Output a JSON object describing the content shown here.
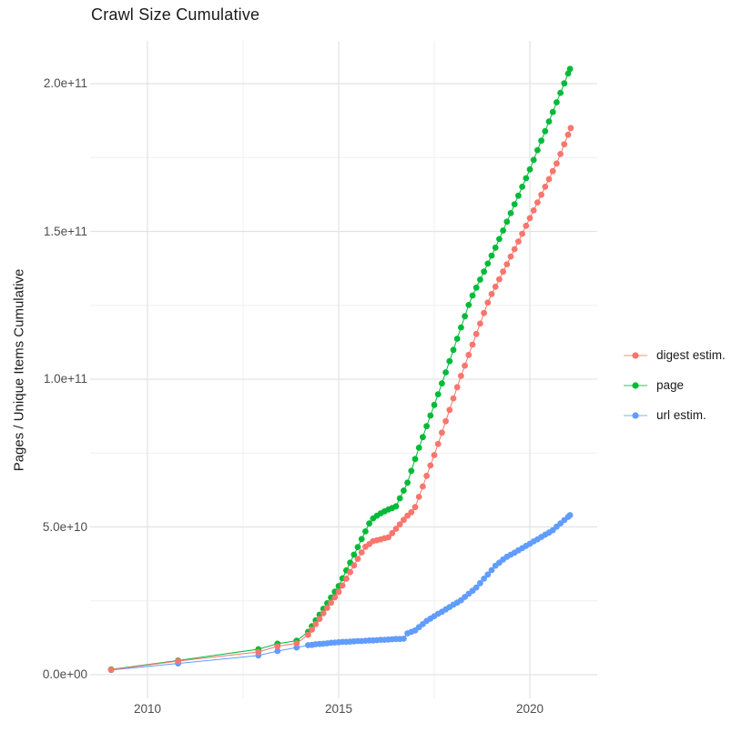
{
  "title": "Crawl Size Cumulative",
  "axes": {
    "y_title": "Pages / Unique Items Cumulative",
    "x_tick_labels": [
      "2010",
      "2015",
      "2020"
    ],
    "y_tick_labels": [
      "0.0e+00",
      "5.0e+10",
      "1.0e+11",
      "1.5e+11",
      "2.0e+11"
    ]
  },
  "legend": {
    "items": [
      {
        "label": "digest estim.",
        "color": "#F8766D"
      },
      {
        "label": "page",
        "color": "#00BA38"
      },
      {
        "label": "url estim.",
        "color": "#619CFF"
      }
    ]
  },
  "style": {
    "background": "#FFFFFF",
    "grid_major_color": "#E3E3E3",
    "grid_minor_color": "#F0F0F0",
    "tick_text_color": "#4D4D4D",
    "title_text_color": "#1A1A1A"
  },
  "chart_data": {
    "type": "line",
    "title": "Crawl Size Cumulative",
    "xlabel": "",
    "ylabel": "Pages / Unique Items Cumulative",
    "value_unit": "items, stored as billions (1 = 1e9); y axis labelled in scientific notation",
    "x_range": [
      2008.5,
      2021.7
    ],
    "y_range_e9": [
      0,
      215
    ],
    "x_major_ticks": [
      2010,
      2015,
      2020
    ],
    "x_minor_ticks": [
      2012.5,
      2017.5
    ],
    "y_major_ticks_e9": [
      0,
      50,
      100,
      150,
      200
    ],
    "y_minor_ticks_e9": [
      25,
      75,
      125,
      175
    ],
    "grid": "major+minor",
    "legend_position": "right",
    "marker": "point",
    "line": true,
    "series": [
      {
        "name": "digest estim.",
        "color": "#F8766D",
        "points": [
          [
            2009.05,
            1.7
          ],
          [
            2010.8,
            4.6
          ],
          [
            2012.9,
            7.7
          ],
          [
            2013.4,
            9.6
          ],
          [
            2013.9,
            10.6
          ],
          [
            2014.2,
            13.5
          ],
          [
            2014.3,
            15.3
          ],
          [
            2014.4,
            17.1
          ],
          [
            2014.5,
            18.9
          ],
          [
            2014.6,
            20.8
          ],
          [
            2014.7,
            22.6
          ],
          [
            2014.8,
            24.4
          ],
          [
            2014.9,
            26.2
          ],
          [
            2015.0,
            28.0
          ],
          [
            2015.1,
            30.2
          ],
          [
            2015.2,
            32.5
          ],
          [
            2015.3,
            34.7
          ],
          [
            2015.4,
            37.0
          ],
          [
            2015.5,
            39.2
          ],
          [
            2015.6,
            41.4
          ],
          [
            2015.7,
            43.3
          ],
          [
            2015.8,
            44.2
          ],
          [
            2015.9,
            45.2
          ],
          [
            2016.0,
            45.5
          ],
          [
            2016.1,
            45.8
          ],
          [
            2016.2,
            46.2
          ],
          [
            2016.3,
            46.5
          ],
          [
            2016.4,
            47.9
          ],
          [
            2016.5,
            49.4
          ],
          [
            2016.6,
            50.9
          ],
          [
            2016.7,
            52.4
          ],
          [
            2016.8,
            53.8
          ],
          [
            2016.9,
            55.0
          ],
          [
            2017.0,
            56.7
          ],
          [
            2017.1,
            60.2
          ],
          [
            2017.2,
            63.7
          ],
          [
            2017.3,
            67.3
          ],
          [
            2017.4,
            70.8
          ],
          [
            2017.5,
            74.3
          ],
          [
            2017.6,
            78.1
          ],
          [
            2017.7,
            81.9
          ],
          [
            2017.8,
            85.8
          ],
          [
            2017.9,
            89.6
          ],
          [
            2018.0,
            93.5
          ],
          [
            2018.1,
            97.3
          ],
          [
            2018.2,
            101.1
          ],
          [
            2018.3,
            104.6
          ],
          [
            2018.4,
            108.2
          ],
          [
            2018.5,
            111.7
          ],
          [
            2018.6,
            115.3
          ],
          [
            2018.7,
            118.8
          ],
          [
            2018.8,
            122.4
          ],
          [
            2018.9,
            125.9
          ],
          [
            2019.0,
            128.8
          ],
          [
            2019.1,
            131.3
          ],
          [
            2019.2,
            133.8
          ],
          [
            2019.3,
            136.4
          ],
          [
            2019.4,
            138.9
          ],
          [
            2019.5,
            141.5
          ],
          [
            2019.6,
            144.0
          ],
          [
            2019.7,
            146.6
          ],
          [
            2019.8,
            149.2
          ],
          [
            2019.9,
            151.9
          ],
          [
            2020.0,
            154.5
          ],
          [
            2020.1,
            157.1
          ],
          [
            2020.2,
            159.8
          ],
          [
            2020.3,
            162.4
          ],
          [
            2020.4,
            165.1
          ],
          [
            2020.5,
            167.7
          ],
          [
            2020.6,
            170.4
          ],
          [
            2020.7,
            173.0
          ],
          [
            2020.8,
            176.2
          ],
          [
            2020.9,
            179.5
          ],
          [
            2021.0,
            182.7
          ],
          [
            2021.07,
            185.0
          ]
        ]
      },
      {
        "name": "page",
        "color": "#00BA38",
        "points": [
          [
            2009.05,
            1.8
          ],
          [
            2010.8,
            4.8
          ],
          [
            2012.9,
            8.6
          ],
          [
            2013.4,
            10.5
          ],
          [
            2013.9,
            11.5
          ],
          [
            2014.2,
            14.5
          ],
          [
            2014.3,
            16.4
          ],
          [
            2014.4,
            18.4
          ],
          [
            2014.5,
            20.3
          ],
          [
            2014.6,
            22.3
          ],
          [
            2014.7,
            24.2
          ],
          [
            2014.8,
            26.1
          ],
          [
            2014.9,
            28.1
          ],
          [
            2015.0,
            30.0
          ],
          [
            2015.1,
            32.6
          ],
          [
            2015.2,
            35.3
          ],
          [
            2015.3,
            37.9
          ],
          [
            2015.4,
            40.6
          ],
          [
            2015.5,
            43.2
          ],
          [
            2015.6,
            45.9
          ],
          [
            2015.7,
            48.5
          ],
          [
            2015.8,
            51.2
          ],
          [
            2015.9,
            52.9
          ],
          [
            2016.0,
            53.8
          ],
          [
            2016.1,
            54.6
          ],
          [
            2016.2,
            55.3
          ],
          [
            2016.3,
            55.9
          ],
          [
            2016.4,
            56.4
          ],
          [
            2016.5,
            57.0
          ],
          [
            2016.6,
            59.7
          ],
          [
            2016.7,
            62.3
          ],
          [
            2016.8,
            65.0
          ],
          [
            2016.9,
            69.0
          ],
          [
            2017.0,
            73.0
          ],
          [
            2017.1,
            76.8
          ],
          [
            2017.2,
            80.4
          ],
          [
            2017.3,
            84.1
          ],
          [
            2017.4,
            87.7
          ],
          [
            2017.5,
            91.3
          ],
          [
            2017.6,
            94.9
          ],
          [
            2017.7,
            98.6
          ],
          [
            2017.8,
            102.3
          ],
          [
            2017.9,
            106.1
          ],
          [
            2018.0,
            109.9
          ],
          [
            2018.1,
            113.7
          ],
          [
            2018.2,
            117.5
          ],
          [
            2018.3,
            121.3
          ],
          [
            2018.4,
            125.1
          ],
          [
            2018.5,
            128.3
          ],
          [
            2018.6,
            131.0
          ],
          [
            2018.7,
            133.7
          ],
          [
            2018.8,
            136.4
          ],
          [
            2018.9,
            139.1
          ],
          [
            2019.0,
            141.8
          ],
          [
            2019.1,
            144.5
          ],
          [
            2019.2,
            147.4
          ],
          [
            2019.3,
            150.3
          ],
          [
            2019.4,
            153.3
          ],
          [
            2019.5,
            156.2
          ],
          [
            2019.6,
            159.2
          ],
          [
            2019.7,
            162.1
          ],
          [
            2019.8,
            165.1
          ],
          [
            2019.9,
            168.0
          ],
          [
            2020.0,
            171.0
          ],
          [
            2020.1,
            174.2
          ],
          [
            2020.2,
            177.5
          ],
          [
            2020.3,
            180.7
          ],
          [
            2020.4,
            183.9
          ],
          [
            2020.5,
            187.2
          ],
          [
            2020.6,
            190.4
          ],
          [
            2020.7,
            193.7
          ],
          [
            2020.8,
            196.9
          ],
          [
            2020.9,
            200.1
          ],
          [
            2021.0,
            203.4
          ],
          [
            2021.05,
            205.0
          ]
        ]
      },
      {
        "name": "url estim.",
        "color": "#619CFF",
        "points": [
          [
            2009.05,
            1.6
          ],
          [
            2010.8,
            3.8
          ],
          [
            2012.9,
            6.5
          ],
          [
            2013.4,
            8.0
          ],
          [
            2013.9,
            9.2
          ],
          [
            2014.2,
            10.0
          ],
          [
            2014.3,
            10.1
          ],
          [
            2014.4,
            10.3
          ],
          [
            2014.5,
            10.4
          ],
          [
            2014.6,
            10.5
          ],
          [
            2014.7,
            10.6
          ],
          [
            2014.8,
            10.8
          ],
          [
            2014.9,
            10.9
          ],
          [
            2015.0,
            11.0
          ],
          [
            2015.1,
            11.1
          ],
          [
            2015.2,
            11.1
          ],
          [
            2015.3,
            11.2
          ],
          [
            2015.4,
            11.3
          ],
          [
            2015.5,
            11.4
          ],
          [
            2015.6,
            11.4
          ],
          [
            2015.7,
            11.5
          ],
          [
            2015.8,
            11.6
          ],
          [
            2015.9,
            11.6
          ],
          [
            2016.0,
            11.7
          ],
          [
            2016.1,
            11.8
          ],
          [
            2016.2,
            11.8
          ],
          [
            2016.3,
            11.9
          ],
          [
            2016.4,
            12.0
          ],
          [
            2016.5,
            12.1
          ],
          [
            2016.6,
            12.1
          ],
          [
            2016.7,
            12.2
          ],
          [
            2016.8,
            14.0
          ],
          [
            2016.9,
            14.5
          ],
          [
            2017.0,
            15.0
          ],
          [
            2017.1,
            16.1
          ],
          [
            2017.2,
            17.1
          ],
          [
            2017.3,
            18.2
          ],
          [
            2017.4,
            19.0
          ],
          [
            2017.5,
            19.8
          ],
          [
            2017.6,
            20.6
          ],
          [
            2017.7,
            21.3
          ],
          [
            2017.8,
            22.1
          ],
          [
            2017.9,
            22.9
          ],
          [
            2018.0,
            23.7
          ],
          [
            2018.1,
            24.4
          ],
          [
            2018.2,
            25.2
          ],
          [
            2018.3,
            26.3
          ],
          [
            2018.4,
            27.4
          ],
          [
            2018.5,
            28.4
          ],
          [
            2018.6,
            29.5
          ],
          [
            2018.7,
            31.0
          ],
          [
            2018.8,
            32.5
          ],
          [
            2018.9,
            33.9
          ],
          [
            2019.0,
            35.4
          ],
          [
            2019.1,
            36.9
          ],
          [
            2019.2,
            37.9
          ],
          [
            2019.3,
            39.0
          ],
          [
            2019.4,
            39.9
          ],
          [
            2019.5,
            40.6
          ],
          [
            2019.6,
            41.3
          ],
          [
            2019.7,
            42.1
          ],
          [
            2019.8,
            42.8
          ],
          [
            2019.9,
            43.6
          ],
          [
            2020.0,
            44.3
          ],
          [
            2020.1,
            45.1
          ],
          [
            2020.2,
            45.8
          ],
          [
            2020.3,
            46.6
          ],
          [
            2020.4,
            47.4
          ],
          [
            2020.5,
            48.1
          ],
          [
            2020.6,
            48.9
          ],
          [
            2020.7,
            50.1
          ],
          [
            2020.8,
            51.2
          ],
          [
            2020.9,
            52.3
          ],
          [
            2021.0,
            53.4
          ],
          [
            2021.05,
            54.0
          ]
        ]
      }
    ]
  }
}
